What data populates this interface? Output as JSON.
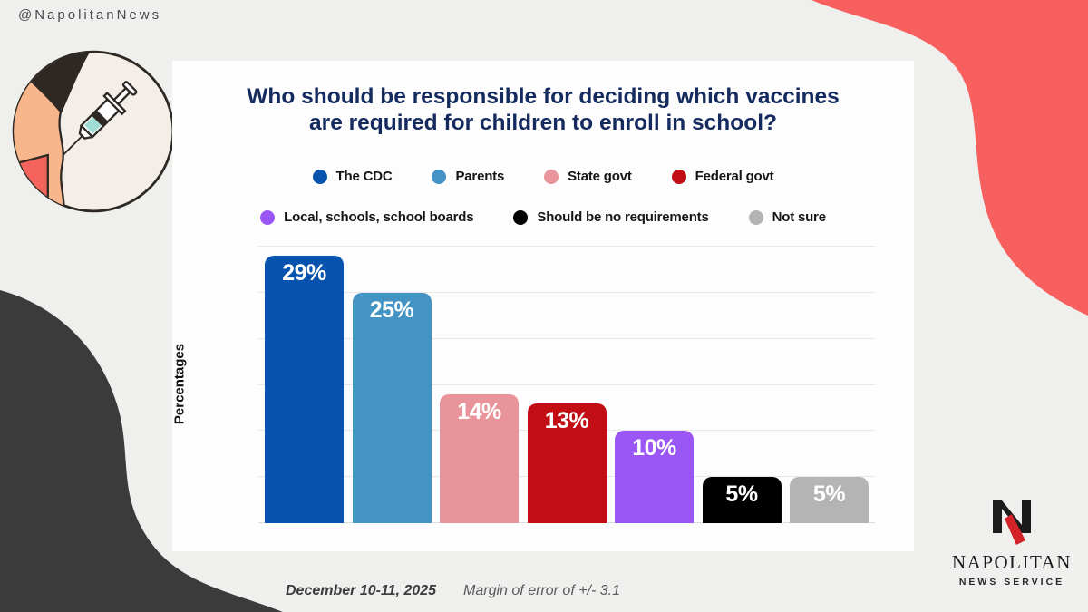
{
  "handle": "@NapolitanNews",
  "title": "Who should be responsible for deciding which vaccines are required for children to enroll in school?",
  "chart_data": {
    "type": "bar",
    "title": "Who should be responsible for deciding which vaccines are required for children to enroll in school?",
    "ylabel": "Percentages",
    "xlabel": "",
    "ylim": [
      0,
      30
    ],
    "gridline_step": 5,
    "grid": true,
    "legend_position": "top",
    "categories": [
      "The CDC",
      "Parents",
      "State govt",
      "Federal govt",
      "Local, schools, school boards",
      "Should be no requirements",
      "Not sure"
    ],
    "values": [
      29,
      25,
      14,
      13,
      10,
      5,
      5
    ],
    "data_labels": [
      "29%",
      "25%",
      "14%",
      "13%",
      "10%",
      "5%",
      "5%"
    ],
    "bar_colors": [
      "#0753ae",
      "#4394c4",
      "#e9939a",
      "#c30d14",
      "#9a57f6",
      "#000000",
      "#b4b4b4"
    ],
    "legend_rows": [
      [
        {
          "label": "The CDC",
          "color": "#0753ae"
        },
        {
          "label": "Parents",
          "color": "#4394c4"
        },
        {
          "label": "State govt",
          "color": "#e9939a"
        },
        {
          "label": "Federal govt",
          "color": "#c30d14"
        }
      ],
      [
        {
          "label": "Local, schools, school boards",
          "color": "#9a57f6"
        },
        {
          "label": "Should be no requirements",
          "color": "#000000"
        },
        {
          "label": "Not sure",
          "color": "#b4b4b4"
        }
      ]
    ]
  },
  "footer": {
    "date": "December 10-11, 2025",
    "margin_of_error": "Margin of error of +/- 3.1"
  },
  "logo": {
    "name": "NAPOLITAN",
    "subtitle": "NEWS SERVICE"
  },
  "colors": {
    "background": "#efefee",
    "card": "#fdfdfd",
    "red_blob": "#f7605f",
    "dark_blob": "#3b3b3b",
    "title_navy": "#152a5e",
    "gridline": "#e7e7e7"
  }
}
